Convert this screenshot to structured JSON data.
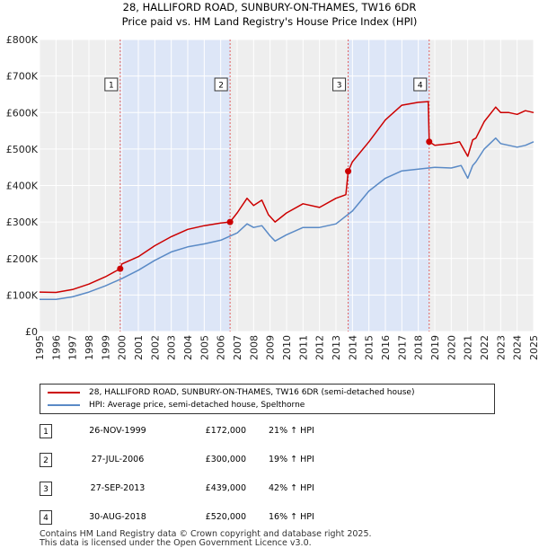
{
  "chart_data": {
    "type": "line",
    "title": "28, HALLIFORD ROAD, SUNBURY-ON-THAMES, TW16 6DR",
    "subtitle": "Price paid vs. HM Land Registry's House Price Index (HPI)",
    "xlabel": "",
    "ylabel": "",
    "xlim": [
      1995,
      2025
    ],
    "ylim": [
      0,
      800000
    ],
    "x_ticks": [
      "1995",
      "1996",
      "1997",
      "1998",
      "1999",
      "2000",
      "2001",
      "2002",
      "2003",
      "2004",
      "2005",
      "2006",
      "2007",
      "2008",
      "2009",
      "2010",
      "2011",
      "2012",
      "2013",
      "2014",
      "2015",
      "2016",
      "2017",
      "2018",
      "2019",
      "2020",
      "2021",
      "2022",
      "2023",
      "2024",
      "2025"
    ],
    "y_ticks": [
      {
        "value": 0,
        "label": "£0"
      },
      {
        "value": 100000,
        "label": "£100K"
      },
      {
        "value": 200000,
        "label": "£200K"
      },
      {
        "value": 300000,
        "label": "£300K"
      },
      {
        "value": 400000,
        "label": "£400K"
      },
      {
        "value": 500000,
        "label": "£500K"
      },
      {
        "value": 600000,
        "label": "£600K"
      },
      {
        "value": 700000,
        "label": "£700K"
      },
      {
        "value": 800000,
        "label": "£800K"
      }
    ],
    "grid": true,
    "shaded_ranges": [
      [
        1999.9,
        2006.57
      ],
      [
        2013.74,
        2018.66
      ]
    ],
    "series": [
      {
        "name": "28, HALLIFORD ROAD, SUNBURY-ON-THAMES, TW16 6DR (semi-detached house)",
        "color": "#cc0000",
        "x": [
          1995,
          1996,
          1997,
          1998,
          1999,
          1999.9,
          2000,
          2001,
          2002,
          2003,
          2004,
          2005,
          2006,
          2006.57,
          2007,
          2007.6,
          2008,
          2008.5,
          2008.9,
          2009.3,
          2010,
          2011,
          2012,
          2013,
          2013.6,
          2013.74,
          2014,
          2015,
          2016,
          2017,
          2018,
          2018.6,
          2018.66,
          2019,
          2020,
          2020.5,
          2021,
          2021.3,
          2021.5,
          2022,
          2022.7,
          2023,
          2023.5,
          2024,
          2024.5,
          2025
        ],
        "values": [
          108000,
          107000,
          115000,
          130000,
          150000,
          172000,
          185000,
          205000,
          235000,
          260000,
          280000,
          290000,
          297000,
          300000,
          325000,
          365000,
          345000,
          360000,
          320000,
          300000,
          325000,
          350000,
          340000,
          365000,
          375000,
          439000,
          465000,
          520000,
          580000,
          620000,
          628000,
          630000,
          520000,
          510000,
          515000,
          520000,
          480000,
          525000,
          530000,
          575000,
          615000,
          600000,
          600000,
          595000,
          605000,
          600000
        ]
      },
      {
        "name": "HPI: Average price, semi-detached house, Spelthorne",
        "color": "#5a8ac6",
        "x": [
          1995,
          1996,
          1997,
          1998,
          1999,
          2000,
          2001,
          2002,
          2003,
          2004,
          2005,
          2006,
          2007,
          2007.6,
          2008,
          2008.5,
          2009,
          2009.3,
          2010,
          2011,
          2012,
          2013,
          2014,
          2015,
          2016,
          2017,
          2018,
          2019,
          2020,
          2020.6,
          2021,
          2021.3,
          2021.5,
          2022,
          2022.7,
          2023,
          2023.5,
          2024,
          2024.5,
          2025
        ],
        "values": [
          88000,
          88000,
          95000,
          108000,
          125000,
          145000,
          168000,
          195000,
          218000,
          232000,
          240000,
          250000,
          270000,
          295000,
          285000,
          290000,
          262000,
          248000,
          265000,
          285000,
          285000,
          295000,
          330000,
          385000,
          420000,
          440000,
          445000,
          450000,
          448000,
          455000,
          420000,
          455000,
          465000,
          500000,
          530000,
          515000,
          510000,
          505000,
          510000,
          520000
        ]
      }
    ],
    "sales": [
      {
        "label": "1",
        "x": 1999.9,
        "value": 172000
      },
      {
        "label": "2",
        "x": 2006.57,
        "value": 300000
      },
      {
        "label": "3",
        "x": 2013.74,
        "value": 439000
      },
      {
        "label": "4",
        "x": 2018.66,
        "value": 520000
      }
    ]
  },
  "legend": {
    "property_label": "28, HALLIFORD ROAD, SUNBURY-ON-THAMES, TW16 6DR (semi-detached house)",
    "hpi_label": "HPI: Average price, semi-detached house, Spelthorne"
  },
  "sales_table": [
    {
      "num": "1",
      "date": "26-NOV-1999",
      "price": "£172,000",
      "hpi": "21% ↑ HPI"
    },
    {
      "num": "2",
      "date": "27-JUL-2006",
      "price": "£300,000",
      "hpi": "19% ↑ HPI"
    },
    {
      "num": "3",
      "date": "27-SEP-2013",
      "price": "£439,000",
      "hpi": "42% ↑ HPI"
    },
    {
      "num": "4",
      "date": "30-AUG-2018",
      "price": "£520,000",
      "hpi": "16% ↑ HPI"
    }
  ],
  "footer": {
    "line1": "Contains HM Land Registry data © Crown copyright and database right 2025.",
    "line2": "This data is licensed under the Open Government Licence v3.0."
  },
  "colors": {
    "property": "#cc0000",
    "hpi": "#5a8ac6",
    "shade": "#dde6f7",
    "plot_bg": "#eeeeee",
    "grid": "#ffffff",
    "vline": "#e06060"
  }
}
